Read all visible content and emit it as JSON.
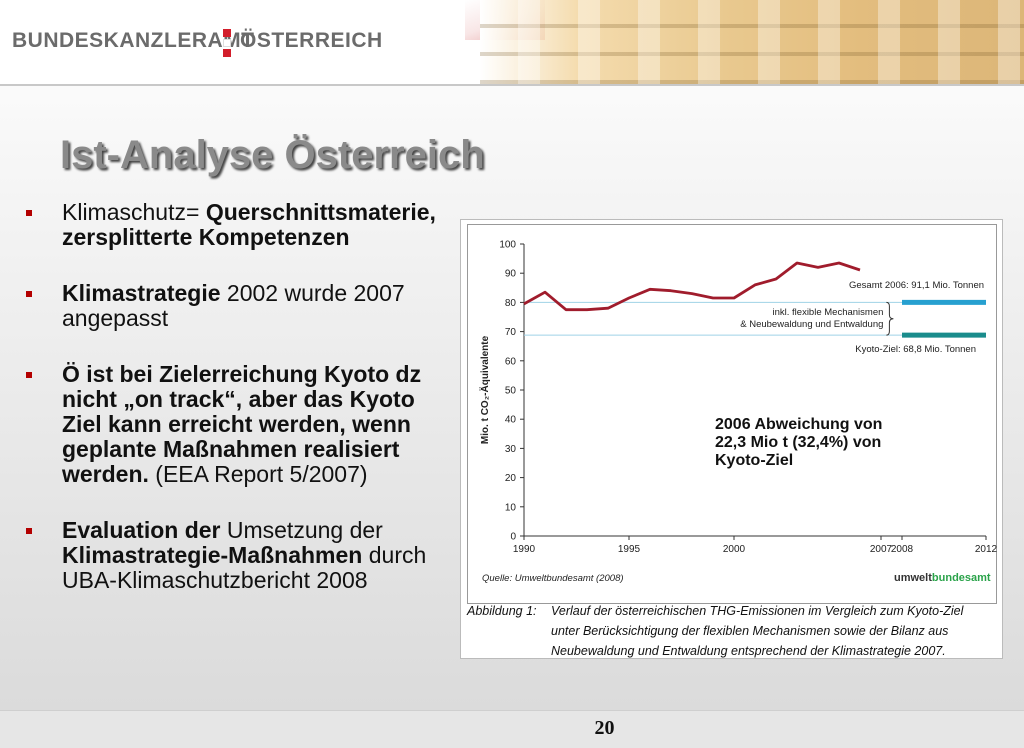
{
  "header": {
    "logo_left": "BUNDESKANZLERAMT",
    "logo_right": "ÖSTERREICH"
  },
  "title": "Ist-Analyse Österreich",
  "bullets": [
    {
      "parts": [
        {
          "text": "Klimaschutz= ",
          "bold": false
        },
        {
          "text": "Querschnittsmaterie, zersplitterte Kompetenzen",
          "bold": true
        }
      ]
    },
    {
      "parts": [
        {
          "text": "Klimastrategie",
          "bold": true
        },
        {
          "text": " 2002 wurde 2007 angepasst",
          "bold": false
        }
      ]
    },
    {
      "parts": [
        {
          "text": "Ö ist bei Zielerreichung Kyoto dz nicht „on track“, aber das Kyoto Ziel kann erreicht werden, wenn geplante Maßnahmen realisiert werden.",
          "bold": true
        },
        {
          "text": " (EEA Report 5/2007)",
          "bold": false
        }
      ]
    },
    {
      "parts": [
        {
          "text": "Evaluation der",
          "bold": true
        },
        {
          "text": " Umsetzung der ",
          "bold": false
        },
        {
          "text": "Klimastrategie-Maßnahmen",
          "bold": true
        },
        {
          "text": " durch UBA-Klimaschutzbericht 2008",
          "bold": false
        }
      ]
    }
  ],
  "chart_data": {
    "type": "line",
    "ylabel": "Mio. t CO₂-Äquivalente",
    "ylim": [
      0,
      100
    ],
    "xlim": [
      1990,
      2012
    ],
    "yticks": [
      0,
      10,
      20,
      30,
      40,
      50,
      60,
      70,
      80,
      90,
      100
    ],
    "xticks": [
      "1990",
      "1995",
      "2000",
      "2007",
      "2008",
      "2012"
    ],
    "xtick_values": [
      1990,
      1995,
      2000,
      2007,
      2008,
      2012
    ],
    "series": [
      {
        "name": "Gesamt 2006: 91,1 Mio. Tonnen",
        "color": "#a01c2c",
        "x": [
          1990,
          1991,
          1992,
          1993,
          1994,
          1995,
          1996,
          1997,
          1998,
          1999,
          2000,
          2001,
          2002,
          2003,
          2004,
          2005,
          2006
        ],
        "y": [
          79.5,
          83.5,
          77.5,
          77.5,
          78,
          81.5,
          84.5,
          84,
          83,
          81.5,
          81.5,
          86,
          88,
          93.5,
          92,
          93.5,
          91.1
        ]
      }
    ],
    "reference_lines": [
      {
        "y": 80.0,
        "color": "#9fd2e6"
      },
      {
        "y": 68.8,
        "color": "#9fd2e6",
        "label": "Kyoto-Ziel: 68,8 Mio. Tonnen"
      }
    ],
    "target_bars": [
      {
        "y": 80.0,
        "x_start": 2008,
        "x_end": 2012,
        "color": "#27a0d0"
      },
      {
        "y": 68.8,
        "x_start": 2008,
        "x_end": 2012,
        "color": "#1a8c8c"
      }
    ],
    "brace_label": "inkl. flexible Mechanismen\n& Neubewaldung und Entwaldung",
    "annotation": "2006 Abweichung von 22,3 Mio t (32,4%) von Kyoto-Ziel",
    "source": "Quelle: Umweltbundesamt (2008)",
    "brand_prefix": "umwelt",
    "brand_suffix": "bundesamt",
    "brand_color": "#2aa34a"
  },
  "caption": {
    "label": "Abbildung 1:",
    "text": "Verlauf der österreichischen THG-Emissionen im Vergleich zum Kyoto-Ziel unter Berücksichtigung der flexiblen Mechanismen sowie der Bilanz aus Neubewaldung und Entwaldung entsprechend der Klimastrategie 2007."
  },
  "slide_number": "20"
}
